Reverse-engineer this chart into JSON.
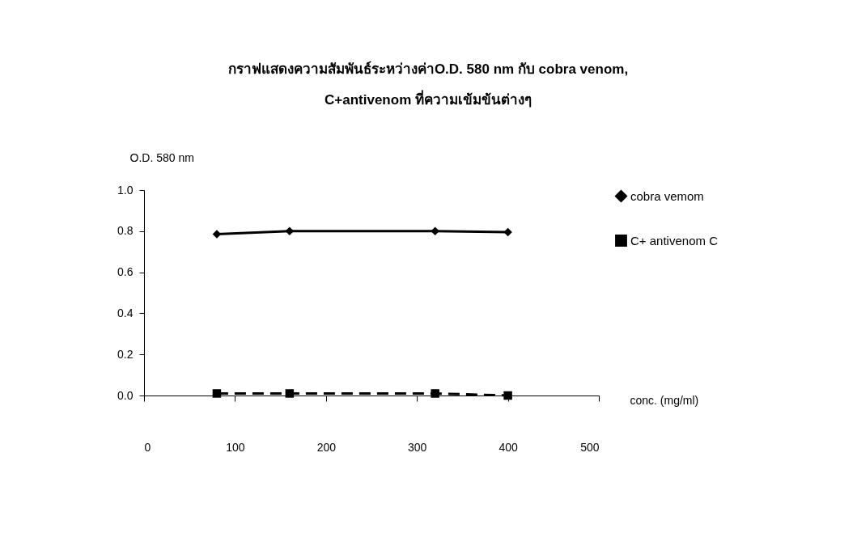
{
  "chart_data": {
    "type": "line",
    "title": "กราฟแสดงความสัมพันธ์ระหว่างค่าO.D. 580 nm กับ cobra venom,\nC+antivenom ที่ความเข้มข้นต่างๆ",
    "xlabel": "conc. (mg/ml)",
    "ylabel": "O.D. 580 nm",
    "x": [
      80,
      160,
      320,
      400
    ],
    "series": [
      {
        "name": "cobra vemom",
        "color": "#000000",
        "marker": "diamond",
        "line_style": "solid",
        "values": [
          0.785,
          0.8,
          0.8,
          0.795
        ]
      },
      {
        "name": "C+ antivenom C",
        "color": "#000000",
        "marker": "square",
        "line_style": "dashed",
        "values": [
          0.01,
          0.01,
          0.01,
          0.0
        ]
      }
    ],
    "xlim": [
      0,
      500
    ],
    "xticks": [
      0,
      100,
      200,
      300,
      400,
      500
    ],
    "ylim": [
      0,
      1
    ],
    "yticks": [
      {
        "value": 0,
        "label": "0.0"
      },
      {
        "value": 0.2,
        "label": "0.2"
      },
      {
        "value": 0.4,
        "label": "0.4"
      },
      {
        "value": 0.6,
        "label": "0.6"
      },
      {
        "value": 0.8,
        "label": "0.8"
      },
      {
        "value": 1,
        "label": "1.0"
      }
    ],
    "grid": false,
    "legend": "top right"
  }
}
